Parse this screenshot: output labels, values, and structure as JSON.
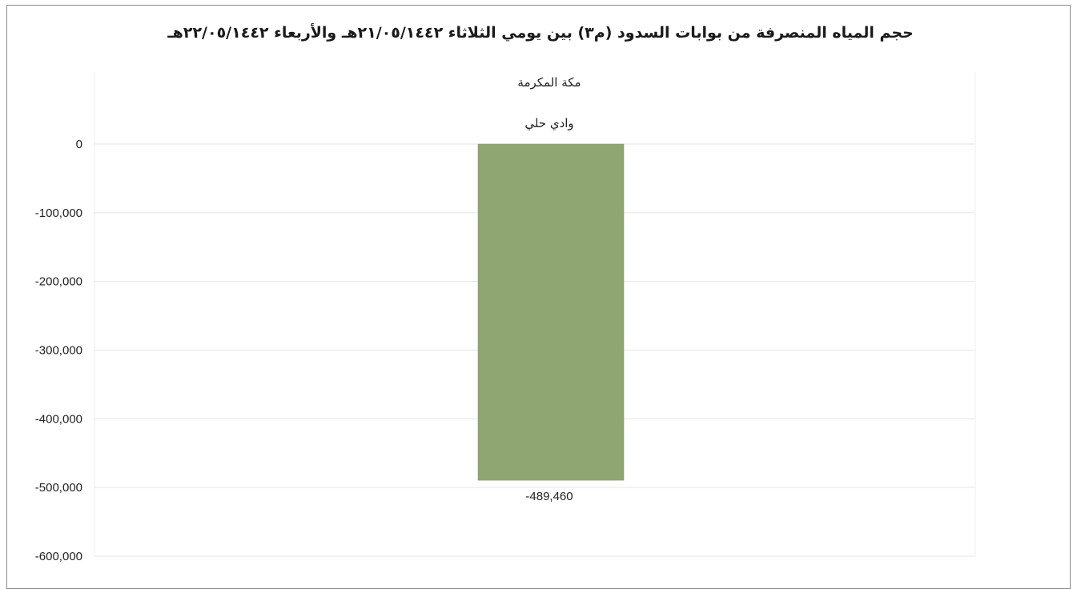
{
  "chart_data": {
    "type": "bar",
    "title": "حجم المياه المنصرفة من بوابات السدود (م٣) بين يومي الثلاثاء ٢١/٠٥/١٤٤٢هـ والأربعاء ٢٢/٠٥/١٤٤٢هـ",
    "category_groups": [
      "مكة المكرمة"
    ],
    "categories": [
      "وادي حلي"
    ],
    "values": [
      -489460
    ],
    "data_labels": [
      "-489,460"
    ],
    "ylim": [
      -600000,
      0
    ],
    "yticks": [
      0,
      -100000,
      -200000,
      -300000,
      -400000,
      -500000,
      -600000
    ],
    "ytick_labels": [
      "0",
      "-100,000",
      "-200,000",
      "-300,000",
      "-400,000",
      "-500,000",
      "-600,000"
    ],
    "xlabel": "",
    "ylabel": "",
    "grid": true,
    "legend": "none",
    "bar_color": "#8fa673",
    "gridline_color": "#e6e6e6"
  }
}
